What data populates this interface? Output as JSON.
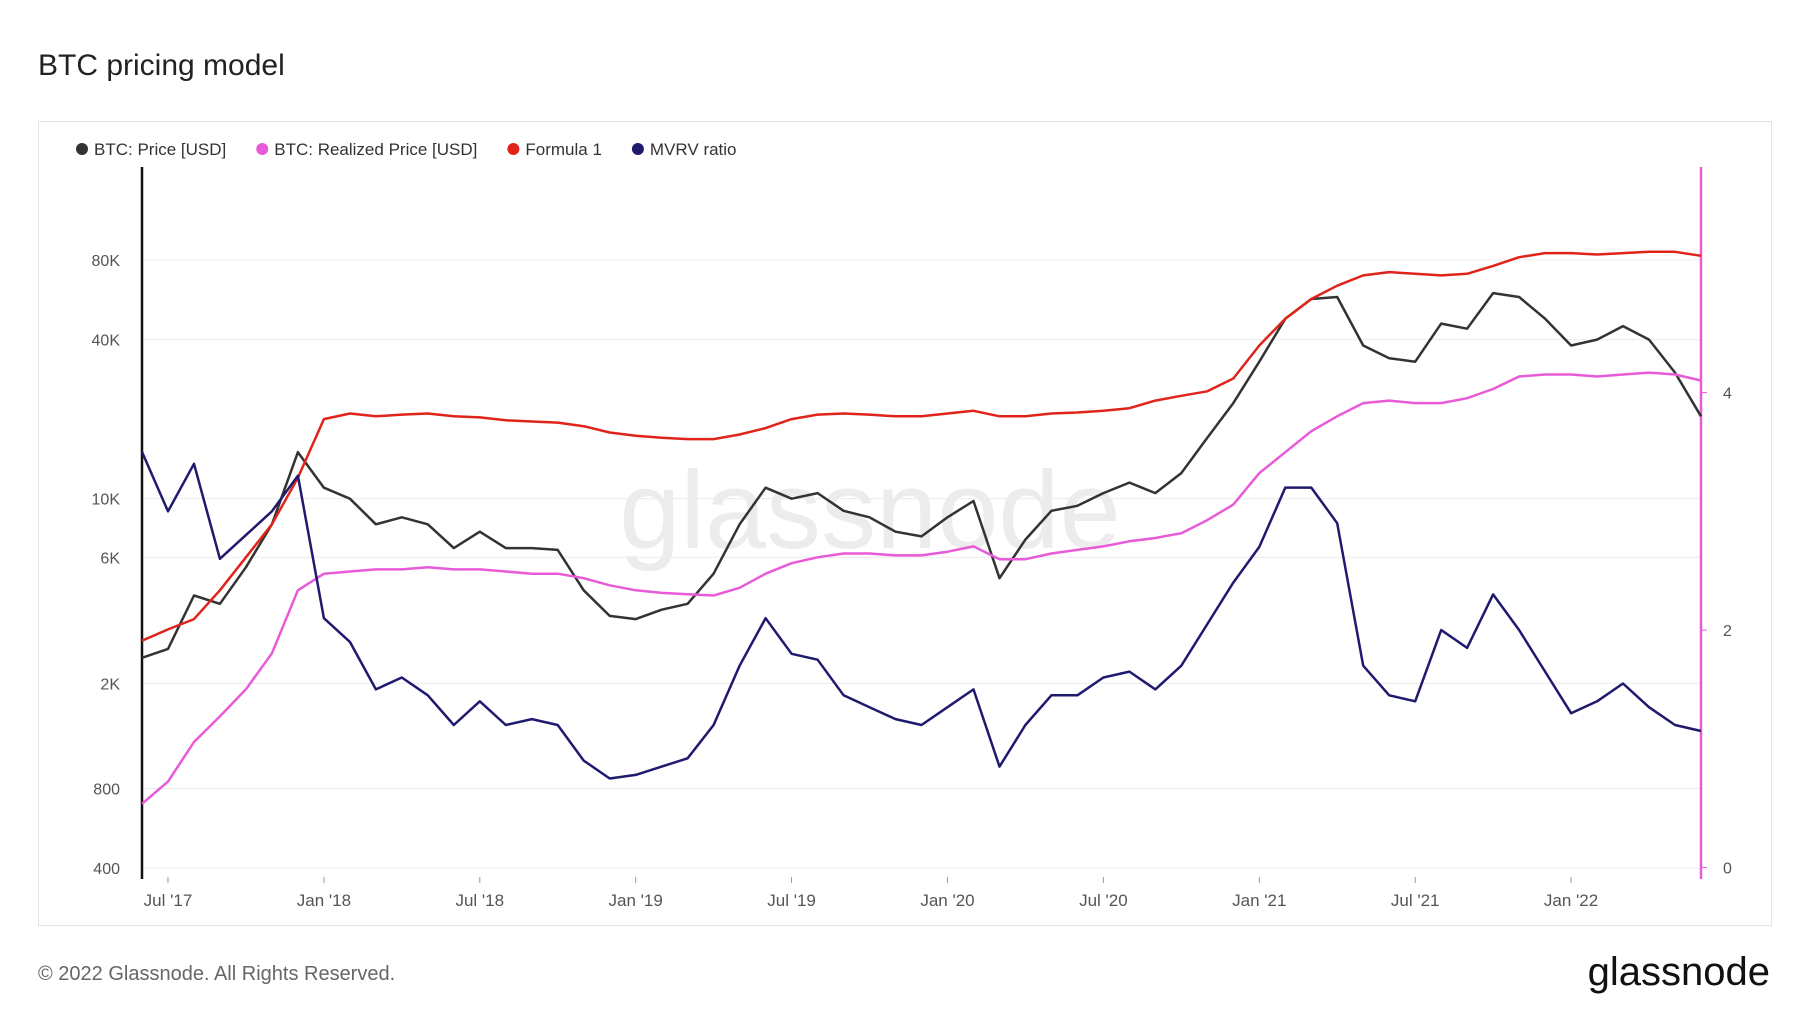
{
  "title": "BTC pricing model",
  "footer": "© 2022 Glassnode. All Rights Reserved.",
  "brand": "glassnode",
  "chart_data": {
    "type": "line",
    "log_scale": true,
    "grid": true,
    "legend_position": "top-left",
    "x": [
      "2017-06",
      "2017-07",
      "2017-08",
      "2017-09",
      "2017-10",
      "2017-11",
      "2017-12",
      "2018-01",
      "2018-02",
      "2018-03",
      "2018-04",
      "2018-05",
      "2018-06",
      "2018-07",
      "2018-08",
      "2018-09",
      "2018-10",
      "2018-11",
      "2018-12",
      "2019-01",
      "2019-02",
      "2019-03",
      "2019-04",
      "2019-05",
      "2019-06",
      "2019-07",
      "2019-08",
      "2019-09",
      "2019-10",
      "2019-11",
      "2019-12",
      "2020-01",
      "2020-02",
      "2020-03",
      "2020-04",
      "2020-05",
      "2020-06",
      "2020-07",
      "2020-08",
      "2020-09",
      "2020-10",
      "2020-11",
      "2020-12",
      "2021-01",
      "2021-02",
      "2021-03",
      "2021-04",
      "2021-05",
      "2021-06",
      "2021-07",
      "2021-08",
      "2021-09",
      "2021-10",
      "2021-11",
      "2021-12",
      "2022-01",
      "2022-02",
      "2022-03",
      "2022-04",
      "2022-05",
      "2022-06"
    ],
    "xlim": [
      "2017-06",
      "2022-06"
    ],
    "xticks": [
      {
        "value": "2017-07",
        "label": "Jul '17"
      },
      {
        "value": "2018-01",
        "label": "Jan '18"
      },
      {
        "value": "2018-07",
        "label": "Jul '18"
      },
      {
        "value": "2019-01",
        "label": "Jan '19"
      },
      {
        "value": "2019-07",
        "label": "Jul '19"
      },
      {
        "value": "2020-01",
        "label": "Jan '20"
      },
      {
        "value": "2020-07",
        "label": "Jul '20"
      },
      {
        "value": "2021-01",
        "label": "Jan '21"
      },
      {
        "value": "2021-07",
        "label": "Jul '21"
      },
      {
        "value": "2022-01",
        "label": "Jan '22"
      }
    ],
    "ylim": [
      370,
      180000
    ],
    "yticks": [
      400,
      800,
      {
        "value": 2000,
        "label": "2K"
      },
      {
        "value": 6000,
        "label": "6K"
      },
      {
        "value": 10000,
        "label": "10K"
      },
      {
        "value": 40000,
        "label": "40K"
      },
      {
        "value": 80000,
        "label": "80K"
      }
    ],
    "y2lim": [
      -0.08,
      5.9
    ],
    "y2ticks": [
      0,
      2,
      4
    ],
    "series": [
      {
        "name": "BTC: Price [USD]",
        "color": "#333333",
        "values": [
          2500,
          2700,
          4300,
          4000,
          5500,
          8000,
          15000,
          11000,
          10000,
          8000,
          8500,
          8000,
          6500,
          7500,
          6500,
          6500,
          6400,
          4500,
          3600,
          3500,
          3800,
          4000,
          5200,
          8000,
          11000,
          10000,
          10500,
          9000,
          8500,
          7500,
          7200,
          8500,
          9800,
          5000,
          7000,
          9000,
          9400,
          10500,
          11500,
          10500,
          12500,
          17000,
          23000,
          33000,
          48000,
          57000,
          58000,
          38000,
          34000,
          33000,
          46000,
          44000,
          60000,
          58000,
          48000,
          38000,
          40000,
          45000,
          40000,
          30000,
          20500
        ]
      },
      {
        "name": "BTC: Realized Price [USD]",
        "color": "#e95ad8",
        "values": [
          700,
          850,
          1200,
          1500,
          1900,
          2600,
          4500,
          5200,
          5300,
          5400,
          5400,
          5500,
          5400,
          5400,
          5300,
          5200,
          5200,
          5000,
          4700,
          4500,
          4400,
          4350,
          4300,
          4600,
          5200,
          5700,
          6000,
          6200,
          6200,
          6100,
          6100,
          6300,
          6600,
          5900,
          5900,
          6200,
          6400,
          6600,
          6900,
          7100,
          7400,
          8300,
          9500,
          12500,
          15000,
          18000,
          20500,
          23000,
          23500,
          23000,
          23000,
          24000,
          26000,
          29000,
          29500,
          29500,
          29000,
          29500,
          30000,
          29500,
          28000
        ]
      },
      {
        "name": "Formula 1",
        "color": "#e0241b",
        "values": [
          2900,
          3200,
          3500,
          4500,
          6000,
          8000,
          12000,
          20000,
          21000,
          20500,
          20800,
          21000,
          20500,
          20300,
          19800,
          19600,
          19400,
          18800,
          17800,
          17300,
          17000,
          16800,
          16800,
          17500,
          18500,
          20000,
          20800,
          21000,
          20800,
          20500,
          20500,
          21000,
          21500,
          20500,
          20500,
          21000,
          21200,
          21500,
          22000,
          23500,
          24500,
          25500,
          28500,
          38000,
          48000,
          57000,
          64000,
          70000,
          72000,
          71000,
          70000,
          71000,
          76000,
          82000,
          85000,
          85000,
          84000,
          85000,
          86000,
          86000,
          83000
        ]
      },
      {
        "name": "MVRV ratio",
        "color": "#1f1a6e",
        "axis": "y2",
        "values": [
          3.5,
          3.0,
          3.4,
          2.6,
          2.8,
          3.0,
          3.3,
          2.1,
          1.9,
          1.5,
          1.6,
          1.45,
          1.2,
          1.4,
          1.2,
          1.25,
          1.2,
          0.9,
          0.75,
          0.78,
          0.85,
          0.92,
          1.2,
          1.7,
          2.1,
          1.8,
          1.75,
          1.45,
          1.35,
          1.25,
          1.2,
          1.35,
          1.5,
          0.85,
          1.2,
          1.45,
          1.45,
          1.6,
          1.65,
          1.5,
          1.7,
          2.05,
          2.4,
          2.7,
          3.2,
          3.2,
          2.9,
          1.7,
          1.45,
          1.4,
          2.0,
          1.85,
          2.3,
          2.0,
          1.65,
          1.3,
          1.4,
          1.55,
          1.35,
          1.2,
          1.15
        ]
      }
    ]
  }
}
